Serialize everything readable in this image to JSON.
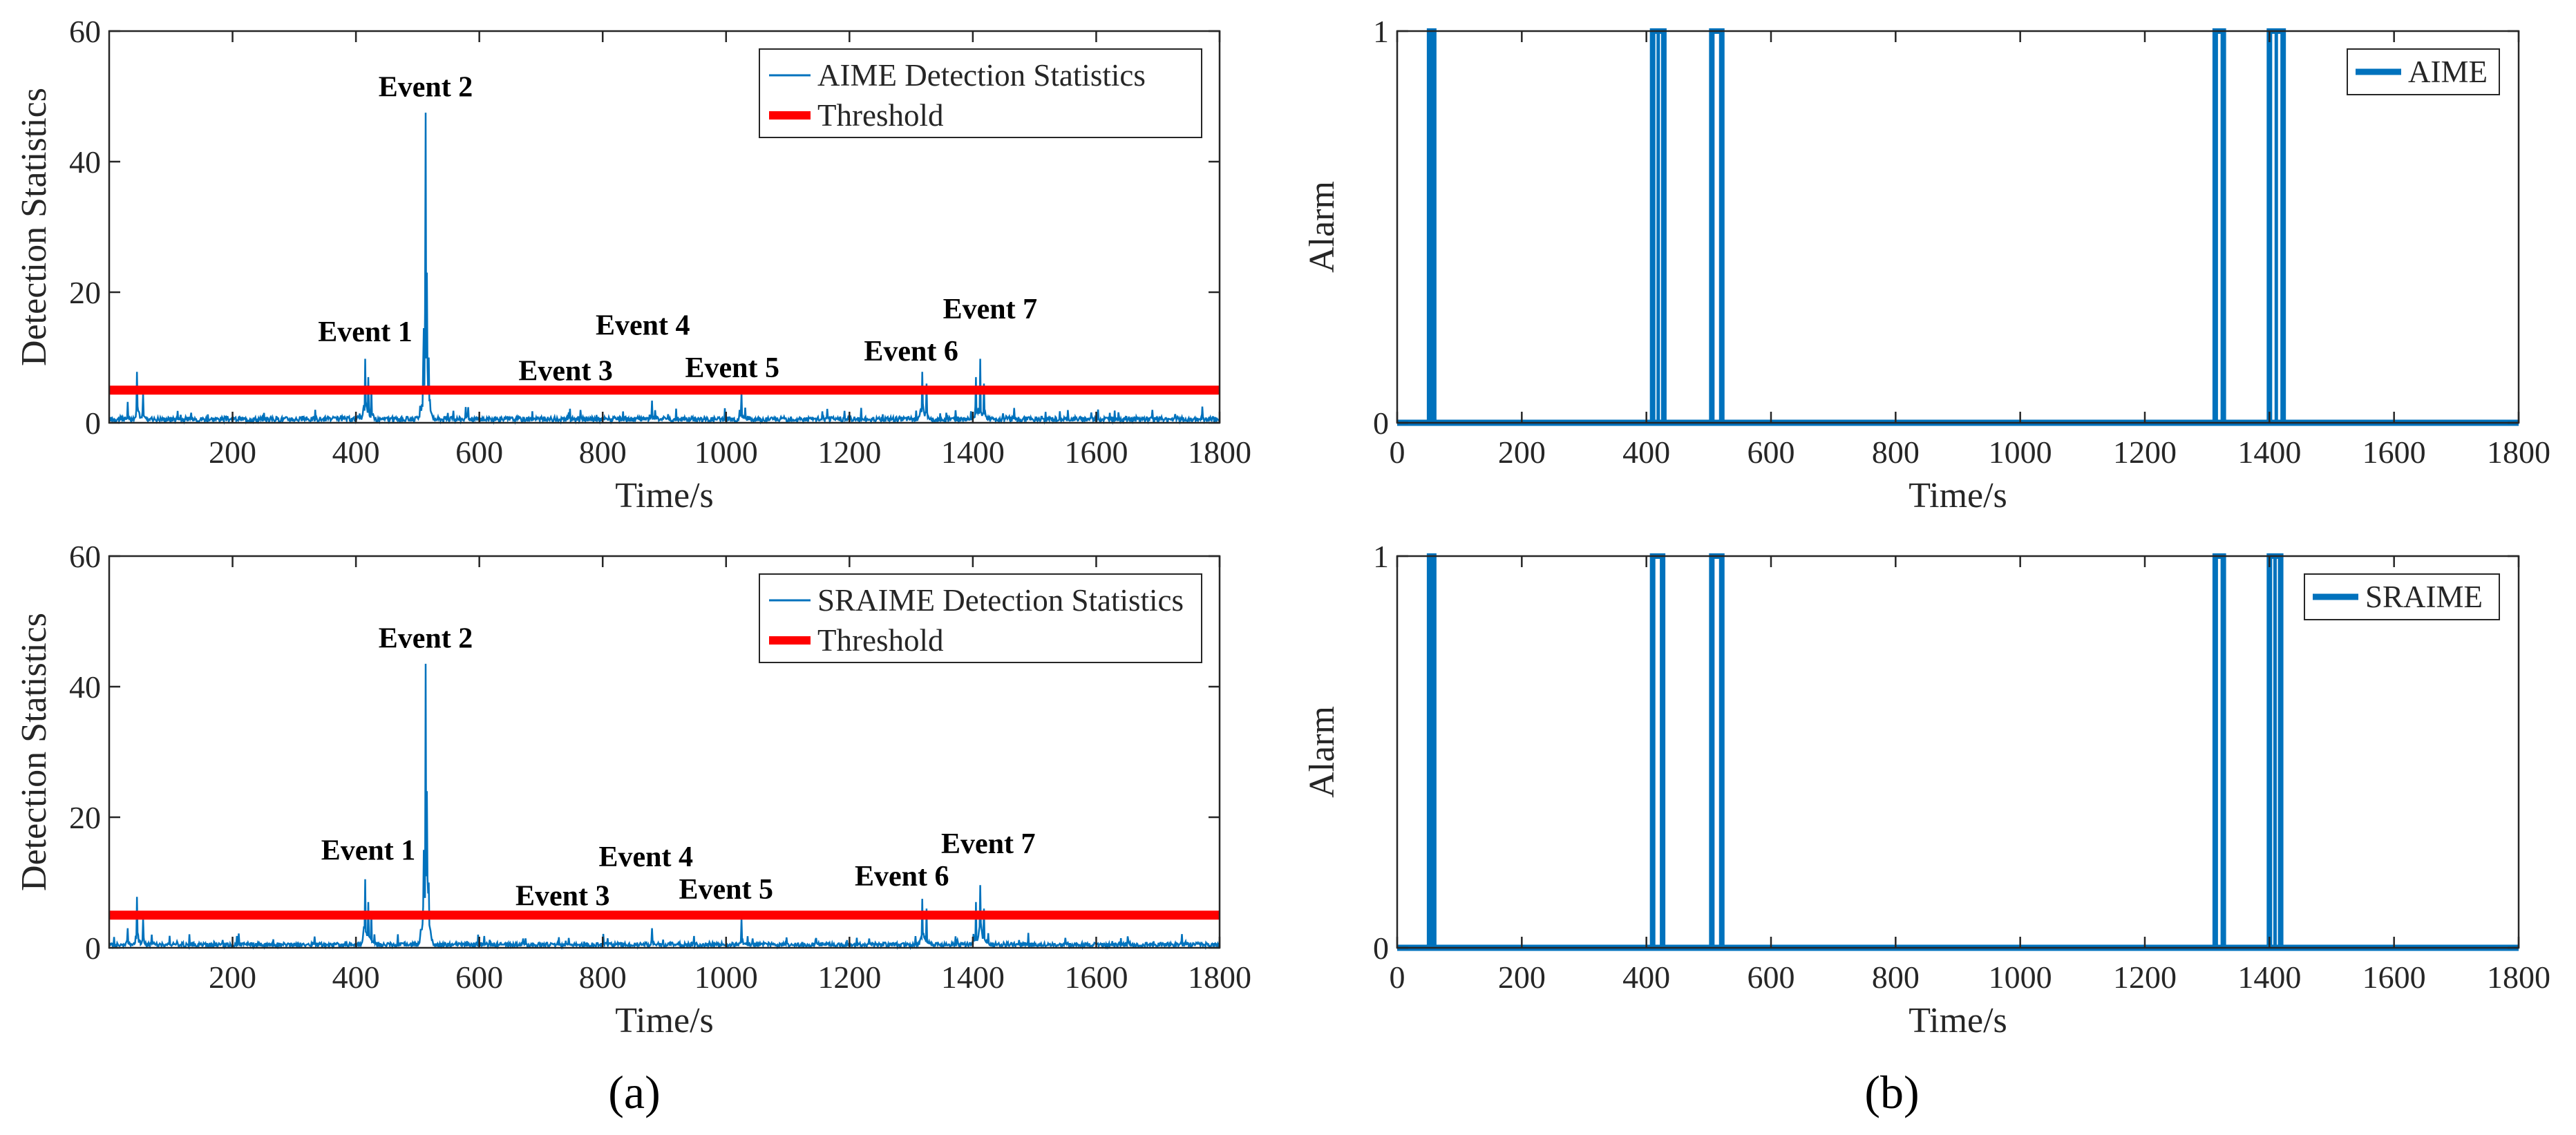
{
  "colors": {
    "signal": "#0072BD",
    "threshold": "#FF0000",
    "axis": "#262626"
  },
  "panel_labels": {
    "a": "(a)",
    "b": "(b)"
  },
  "chart_data": [
    {
      "id": "aime-stats",
      "type": "line",
      "ylabel": "Detection Statistics",
      "xlabel": "Time/s",
      "xlim": [
        0,
        1800
      ],
      "ylim": [
        0,
        60
      ],
      "xticks": [
        200,
        400,
        600,
        800,
        1000,
        1200,
        1400,
        1600,
        1800
      ],
      "yticks": [
        0,
        20,
        40,
        60
      ],
      "legend": [
        "AIME Detection Statistics",
        "Threshold"
      ],
      "threshold": 5,
      "baseline_noise": 0.7,
      "peaks": [
        {
          "x": 45,
          "y": 7.8
        },
        {
          "x": 55,
          "y": 4.5
        },
        {
          "x": 30,
          "y": 3.2
        },
        {
          "x": 415,
          "y": 9.8
        },
        {
          "x": 420,
          "y": 7.0
        },
        {
          "x": 425,
          "y": 5.5
        },
        {
          "x": 510,
          "y": 14.5
        },
        {
          "x": 513,
          "y": 47.5
        },
        {
          "x": 515,
          "y": 23.0
        },
        {
          "x": 518,
          "y": 10.0
        },
        {
          "x": 745,
          "y": 1.6
        },
        {
          "x": 880,
          "y": 3.4
        },
        {
          "x": 1025,
          "y": 4.6
        },
        {
          "x": 1318,
          "y": 7.8
        },
        {
          "x": 1325,
          "y": 6.0
        },
        {
          "x": 1405,
          "y": 7.0
        },
        {
          "x": 1412,
          "y": 9.8
        },
        {
          "x": 1418,
          "y": 6.0
        }
      ],
      "events": [
        {
          "label": "Event 1",
          "x": 415,
          "y": 12.5
        },
        {
          "label": "Event 2",
          "x": 513,
          "y": 50
        },
        {
          "label": "Event 3",
          "x": 740,
          "y": 6.5
        },
        {
          "label": "Event 4",
          "x": 865,
          "y": 13.5
        },
        {
          "label": "Event 5",
          "x": 1010,
          "y": 7.0
        },
        {
          "label": "Event 6",
          "x": 1300,
          "y": 9.5
        },
        {
          "label": "Event 7",
          "x": 1428,
          "y": 16
        }
      ]
    },
    {
      "id": "sraime-stats",
      "type": "line",
      "ylabel": "Detection Statistics",
      "xlabel": "Time/s",
      "xlim": [
        0,
        1800
      ],
      "ylim": [
        0,
        60
      ],
      "xticks": [
        200,
        400,
        600,
        800,
        1000,
        1200,
        1400,
        1600,
        1800
      ],
      "yticks": [
        0,
        20,
        40,
        60
      ],
      "legend": [
        "SRAIME Detection Statistics",
        "Threshold"
      ],
      "threshold": 5,
      "baseline_noise": 0.6,
      "peaks": [
        {
          "x": 45,
          "y": 7.8
        },
        {
          "x": 55,
          "y": 4.5
        },
        {
          "x": 30,
          "y": 3.0
        },
        {
          "x": 415,
          "y": 10.5
        },
        {
          "x": 420,
          "y": 7.0
        },
        {
          "x": 425,
          "y": 5.5
        },
        {
          "x": 510,
          "y": 15.0
        },
        {
          "x": 513,
          "y": 43.5
        },
        {
          "x": 515,
          "y": 24.0
        },
        {
          "x": 518,
          "y": 10.0
        },
        {
          "x": 745,
          "y": 1.5
        },
        {
          "x": 880,
          "y": 3.0
        },
        {
          "x": 1025,
          "y": 4.5
        },
        {
          "x": 1318,
          "y": 7.5
        },
        {
          "x": 1325,
          "y": 6.0
        },
        {
          "x": 1405,
          "y": 7.0
        },
        {
          "x": 1412,
          "y": 9.6
        },
        {
          "x": 1418,
          "y": 6.0
        }
      ],
      "events": [
        {
          "label": "Event 1",
          "x": 420,
          "y": 13.5
        },
        {
          "label": "Event 2",
          "x": 513,
          "y": 46
        },
        {
          "label": "Event 3",
          "x": 735,
          "y": 6.5
        },
        {
          "label": "Event 4",
          "x": 870,
          "y": 12.5
        },
        {
          "label": "Event 5",
          "x": 1000,
          "y": 7.5
        },
        {
          "label": "Event 6",
          "x": 1285,
          "y": 9.5
        },
        {
          "label": "Event 7",
          "x": 1425,
          "y": 14.5
        }
      ]
    },
    {
      "id": "aime-alarm",
      "type": "line",
      "ylabel": "Alarm",
      "xlabel": "Time/s",
      "xlim": [
        0,
        1800
      ],
      "ylim": [
        0,
        1
      ],
      "xticks": [
        0,
        200,
        400,
        600,
        800,
        1000,
        1200,
        1400,
        1600,
        1800
      ],
      "yticks": [
        0,
        1
      ],
      "legend": [
        "AIME"
      ],
      "alarm_intervals": [
        [
          52,
          57
        ],
        [
          410,
          428
        ],
        [
          505,
          521
        ],
        [
          1313,
          1326
        ],
        [
          1400,
          1422
        ]
      ]
    },
    {
      "id": "sraime-alarm",
      "type": "line",
      "ylabel": "Alarm",
      "xlabel": "Time/s",
      "xlim": [
        0,
        1800
      ],
      "ylim": [
        0,
        1
      ],
      "xticks": [
        0,
        200,
        400,
        600,
        800,
        1000,
        1200,
        1400,
        1600,
        1800
      ],
      "yticks": [
        0,
        1
      ],
      "legend": [
        "SRAIME"
      ],
      "alarm_intervals": [
        [
          52,
          57
        ],
        [
          410,
          426
        ],
        [
          505,
          521
        ],
        [
          1313,
          1326
        ],
        [
          1400,
          1418
        ]
      ]
    }
  ]
}
